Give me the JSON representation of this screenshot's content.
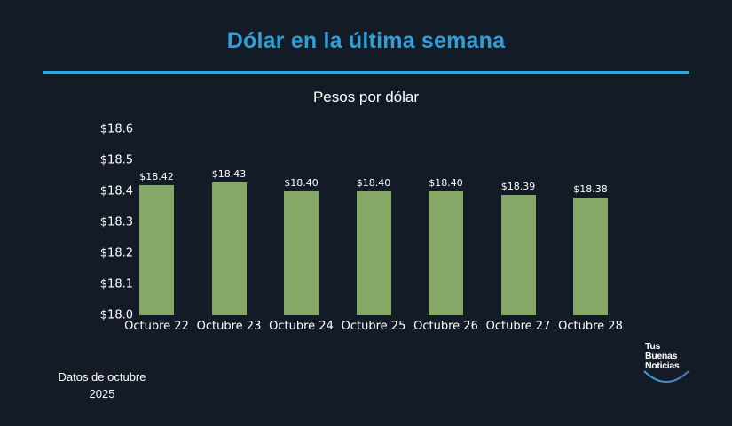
{
  "header": {
    "title": "Dólar en la última semana",
    "subtitle": "Pesos por dólar"
  },
  "footer": {
    "note_line1": "Datos de octubre",
    "note_line2": "2025",
    "logo": [
      "Tus",
      "Buenas",
      "Noticias"
    ]
  },
  "colors": {
    "background": "#131b27",
    "title": "#2f9fd8",
    "bar": "#86a867",
    "rule": "#2fa8dc"
  },
  "chart_data": {
    "type": "bar",
    "title": "Dólar en la última semana",
    "subtitle": "Pesos por dólar",
    "xlabel": "",
    "ylabel": "Pesos por dólar",
    "categories": [
      "Octubre 22",
      "Octubre 23",
      "Octubre 24",
      "Octubre 25",
      "Octubre 26",
      "Octubre 27",
      "Octubre 28"
    ],
    "values": [
      18.42,
      18.43,
      18.4,
      18.4,
      18.4,
      18.39,
      18.38
    ],
    "value_labels": [
      "$18.42",
      "$18.43",
      "$18.40",
      "$18.40",
      "$18.40",
      "$18.39",
      "$18.38"
    ],
    "ylim": [
      18.0,
      18.6
    ],
    "yticks": [
      "$18.0",
      "$18.1",
      "$18.2",
      "$18.3",
      "$18.4",
      "$18.5",
      "$18.6"
    ],
    "grid": false,
    "legend": null,
    "annotation": "Datos de octubre 2025"
  }
}
